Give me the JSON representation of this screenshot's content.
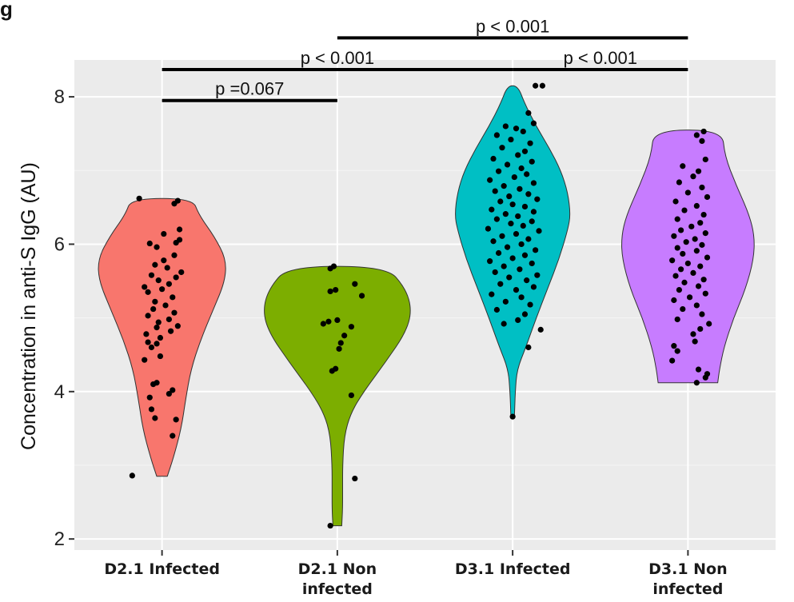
{
  "chart_data": {
    "type": "violin",
    "title_fragment": "g",
    "ylabel": "Concentration in anti-S IgG (AU)",
    "xlabel": "",
    "ylim": [
      1.85,
      8.5
    ],
    "yticks": [
      2,
      4,
      6,
      8
    ],
    "grid": true,
    "categories": [
      "D2.1 Infected",
      "D2.1 Non infected",
      "D3.1 Infected",
      "D3.1 Non infected"
    ],
    "category_label_lines": [
      [
        "D2.1 Infected"
      ],
      [
        "D2.1 Non",
        "infected"
      ],
      [
        "D3.1 Infected"
      ],
      [
        "D3.1 Non",
        "infected"
      ]
    ],
    "series": [
      {
        "category": "D2.1 Infected",
        "color": "#F8766D",
        "min": 2.85,
        "max": 6.62,
        "density": [
          [
            2.85,
            0.06
          ],
          [
            3.1,
            0.13
          ],
          [
            3.5,
            0.22
          ],
          [
            3.9,
            0.27
          ],
          [
            4.3,
            0.33
          ],
          [
            4.7,
            0.44
          ],
          [
            5.1,
            0.58
          ],
          [
            5.5,
            0.72
          ],
          [
            5.8,
            0.73
          ],
          [
            6.1,
            0.6
          ],
          [
            6.4,
            0.42
          ],
          [
            6.62,
            0.35
          ]
        ],
        "points": [
          [
            -0.17,
            2.86
          ],
          [
            0.06,
            3.4
          ],
          [
            0.08,
            3.62
          ],
          [
            -0.04,
            3.64
          ],
          [
            -0.06,
            3.76
          ],
          [
            -0.07,
            3.92
          ],
          [
            0.04,
            3.97
          ],
          [
            0.06,
            4.02
          ],
          [
            -0.05,
            4.1
          ],
          [
            -0.03,
            4.12
          ],
          [
            -0.1,
            4.43
          ],
          [
            -0.01,
            4.48
          ],
          [
            -0.06,
            4.6
          ],
          [
            -0.03,
            4.65
          ],
          [
            -0.08,
            4.67
          ],
          [
            -0.01,
            4.73
          ],
          [
            -0.09,
            4.78
          ],
          [
            0.05,
            4.82
          ],
          [
            -0.03,
            4.87
          ],
          [
            0.09,
            4.89
          ],
          [
            -0.02,
            4.94
          ],
          [
            0.04,
            4.98
          ],
          [
            -0.08,
            5.03
          ],
          [
            0.07,
            5.07
          ],
          [
            -0.05,
            5.12
          ],
          [
            0.02,
            5.17
          ],
          [
            -0.04,
            5.22
          ],
          [
            0.06,
            5.28
          ],
          [
            -0.08,
            5.35
          ],
          [
            0.0,
            5.39
          ],
          [
            -0.1,
            5.42
          ],
          [
            0.04,
            5.46
          ],
          [
            -0.02,
            5.51
          ],
          [
            0.08,
            5.55
          ],
          [
            -0.06,
            5.58
          ],
          [
            0.11,
            5.62
          ],
          [
            0.03,
            5.68
          ],
          [
            -0.04,
            5.72
          ],
          [
            0.01,
            5.78
          ],
          [
            0.07,
            5.85
          ],
          [
            -0.03,
            5.96
          ],
          [
            -0.07,
            6.01
          ],
          [
            0.08,
            6.02
          ],
          [
            0.1,
            6.06
          ],
          [
            0.01,
            6.14
          ],
          [
            0.1,
            6.2
          ],
          [
            0.07,
            6.55
          ],
          [
            0.09,
            6.59
          ],
          [
            -0.13,
            6.62
          ]
        ]
      },
      {
        "category": "D2.1 Non infected",
        "color": "#7CAE00",
        "min": 2.18,
        "max": 5.7,
        "density": [
          [
            2.18,
            0.05
          ],
          [
            2.4,
            0.06
          ],
          [
            2.7,
            0.06
          ],
          [
            3.0,
            0.06
          ],
          [
            3.4,
            0.08
          ],
          [
            3.7,
            0.15
          ],
          [
            4.0,
            0.3
          ],
          [
            4.4,
            0.55
          ],
          [
            4.8,
            0.78
          ],
          [
            5.1,
            0.85
          ],
          [
            5.4,
            0.78
          ],
          [
            5.7,
            0.56
          ]
        ],
        "points": [
          [
            -0.04,
            2.18
          ],
          [
            0.1,
            2.82
          ],
          [
            0.08,
            3.95
          ],
          [
            -0.03,
            4.28
          ],
          [
            -0.01,
            4.31
          ],
          [
            0.01,
            4.58
          ],
          [
            0.02,
            4.66
          ],
          [
            0.04,
            4.76
          ],
          [
            0.08,
            4.88
          ],
          [
            -0.08,
            4.92
          ],
          [
            -0.05,
            4.95
          ],
          [
            0.0,
            4.97
          ],
          [
            0.14,
            5.3
          ],
          [
            -0.04,
            5.36
          ],
          [
            -0.01,
            5.38
          ],
          [
            0.1,
            5.46
          ],
          [
            -0.04,
            5.67
          ],
          [
            -0.02,
            5.7
          ]
        ]
      },
      {
        "category": "D3.1 Infected",
        "color": "#00BFC4",
        "min": 3.66,
        "max": 8.15,
        "density": [
          [
            3.66,
            0.02
          ],
          [
            4.0,
            0.03
          ],
          [
            4.3,
            0.05
          ],
          [
            4.6,
            0.15
          ],
          [
            5.0,
            0.27
          ],
          [
            5.4,
            0.4
          ],
          [
            5.8,
            0.53
          ],
          [
            6.2,
            0.63
          ],
          [
            6.4,
            0.66
          ],
          [
            6.7,
            0.63
          ],
          [
            7.0,
            0.55
          ],
          [
            7.3,
            0.42
          ],
          [
            7.6,
            0.27
          ],
          [
            7.9,
            0.14
          ],
          [
            8.15,
            0.06
          ]
        ],
        "points": [
          [
            0.0,
            3.66
          ],
          [
            0.09,
            4.6
          ],
          [
            0.16,
            4.84
          ],
          [
            -0.05,
            4.92
          ],
          [
            0.03,
            4.97
          ],
          [
            0.07,
            5.05
          ],
          [
            -0.09,
            5.11
          ],
          [
            0.1,
            5.18
          ],
          [
            -0.04,
            5.22
          ],
          [
            0.05,
            5.28
          ],
          [
            -0.12,
            5.32
          ],
          [
            0.02,
            5.38
          ],
          [
            0.12,
            5.42
          ],
          [
            -0.07,
            5.46
          ],
          [
            0.08,
            5.51
          ],
          [
            -0.02,
            5.55
          ],
          [
            0.14,
            5.58
          ],
          [
            -0.1,
            5.62
          ],
          [
            0.04,
            5.66
          ],
          [
            -0.05,
            5.7
          ],
          [
            0.11,
            5.74
          ],
          [
            -0.13,
            5.77
          ],
          [
            0.0,
            5.81
          ],
          [
            0.07,
            5.85
          ],
          [
            -0.08,
            5.88
          ],
          [
            0.13,
            5.92
          ],
          [
            -0.03,
            5.96
          ],
          [
            0.05,
            6.0
          ],
          [
            -0.11,
            6.04
          ],
          [
            0.09,
            6.07
          ],
          [
            -0.06,
            6.11
          ],
          [
            0.02,
            6.14
          ],
          [
            0.15,
            6.18
          ],
          [
            -0.14,
            6.21
          ],
          [
            0.06,
            6.25
          ],
          [
            -0.01,
            6.28
          ],
          [
            0.11,
            6.31
          ],
          [
            -0.09,
            6.34
          ],
          [
            0.03,
            6.38
          ],
          [
            -0.04,
            6.41
          ],
          [
            0.12,
            6.44
          ],
          [
            -0.12,
            6.47
          ],
          [
            0.07,
            6.51
          ],
          [
            0.0,
            6.54
          ],
          [
            -0.07,
            6.58
          ],
          [
            0.14,
            6.61
          ],
          [
            -0.02,
            6.65
          ],
          [
            0.09,
            6.68
          ],
          [
            -0.1,
            6.72
          ],
          [
            0.04,
            6.75
          ],
          [
            -0.05,
            6.79
          ],
          [
            0.12,
            6.83
          ],
          [
            -0.13,
            6.87
          ],
          [
            0.01,
            6.91
          ],
          [
            0.08,
            6.95
          ],
          [
            -0.08,
            6.99
          ],
          [
            0.05,
            7.03
          ],
          [
            -0.03,
            7.08
          ],
          [
            0.11,
            7.12
          ],
          [
            -0.11,
            7.16
          ],
          [
            0.03,
            7.21
          ],
          [
            0.07,
            7.26
          ],
          [
            -0.06,
            7.31
          ],
          [
            0.1,
            7.37
          ],
          [
            -0.01,
            7.42
          ],
          [
            -0.09,
            7.48
          ],
          [
            0.06,
            7.53
          ],
          [
            0.02,
            7.57
          ],
          [
            -0.04,
            7.6
          ],
          [
            0.12,
            7.64
          ],
          [
            0.09,
            7.78
          ],
          [
            0.13,
            8.15
          ],
          [
            0.17,
            8.15
          ]
        ]
      },
      {
        "category": "D3.1 Non infected",
        "color": "#C77CFF",
        "min": 4.12,
        "max": 7.55,
        "density": [
          [
            4.12,
            0.34
          ],
          [
            4.3,
            0.36
          ],
          [
            4.6,
            0.41
          ],
          [
            5.0,
            0.52
          ],
          [
            5.4,
            0.66
          ],
          [
            5.8,
            0.75
          ],
          [
            6.1,
            0.76
          ],
          [
            6.4,
            0.7
          ],
          [
            6.8,
            0.55
          ],
          [
            7.2,
            0.42
          ],
          [
            7.55,
            0.39
          ]
        ],
        "points": [
          [
            0.05,
            4.12
          ],
          [
            0.1,
            4.19
          ],
          [
            0.11,
            4.24
          ],
          [
            0.06,
            4.3
          ],
          [
            -0.09,
            4.42
          ],
          [
            -0.06,
            4.55
          ],
          [
            -0.08,
            4.62
          ],
          [
            0.04,
            4.68
          ],
          [
            0.03,
            4.78
          ],
          [
            0.07,
            4.85
          ],
          [
            0.12,
            4.92
          ],
          [
            -0.06,
            4.98
          ],
          [
            0.08,
            5.05
          ],
          [
            -0.03,
            5.12
          ],
          [
            0.05,
            5.17
          ],
          [
            -0.08,
            5.24
          ],
          [
            0.01,
            5.28
          ],
          [
            0.1,
            5.33
          ],
          [
            -0.05,
            5.38
          ],
          [
            0.06,
            5.43
          ],
          [
            -0.02,
            5.48
          ],
          [
            0.09,
            5.52
          ],
          [
            -0.07,
            5.57
          ],
          [
            0.03,
            5.61
          ],
          [
            -0.04,
            5.66
          ],
          [
            0.07,
            5.7
          ],
          [
            0.0,
            5.74
          ],
          [
            -0.09,
            5.78
          ],
          [
            0.11,
            5.82
          ],
          [
            -0.03,
            5.87
          ],
          [
            0.05,
            5.91
          ],
          [
            -0.06,
            5.95
          ],
          [
            0.08,
            5.99
          ],
          [
            -0.01,
            6.03
          ],
          [
            0.04,
            6.07
          ],
          [
            -0.08,
            6.11
          ],
          [
            0.1,
            6.15
          ],
          [
            -0.04,
            6.19
          ],
          [
            0.02,
            6.24
          ],
          [
            0.07,
            6.29
          ],
          [
            -0.06,
            6.34
          ],
          [
            0.09,
            6.4
          ],
          [
            -0.02,
            6.46
          ],
          [
            0.05,
            6.52
          ],
          [
            -0.07,
            6.58
          ],
          [
            0.11,
            6.64
          ],
          [
            0.0,
            6.7
          ],
          [
            0.08,
            6.77
          ],
          [
            -0.05,
            6.84
          ],
          [
            0.03,
            6.92
          ],
          [
            0.06,
            6.99
          ],
          [
            -0.03,
            7.06
          ],
          [
            0.1,
            7.15
          ],
          [
            0.08,
            7.4
          ],
          [
            0.05,
            7.48
          ],
          [
            0.09,
            7.53
          ]
        ]
      }
    ],
    "comparisons": [
      {
        "from": 0,
        "to": 1,
        "label": "p =0.067",
        "y": 7.95
      },
      {
        "from": 0,
        "to": 2,
        "label": "p < 0.001",
        "y": 8.37
      },
      {
        "from": 2,
        "to": 3,
        "label": "p < 0.001",
        "y": 8.37
      },
      {
        "from": 1,
        "to": 3,
        "label": "p < 0.001",
        "y": 8.8
      }
    ]
  }
}
